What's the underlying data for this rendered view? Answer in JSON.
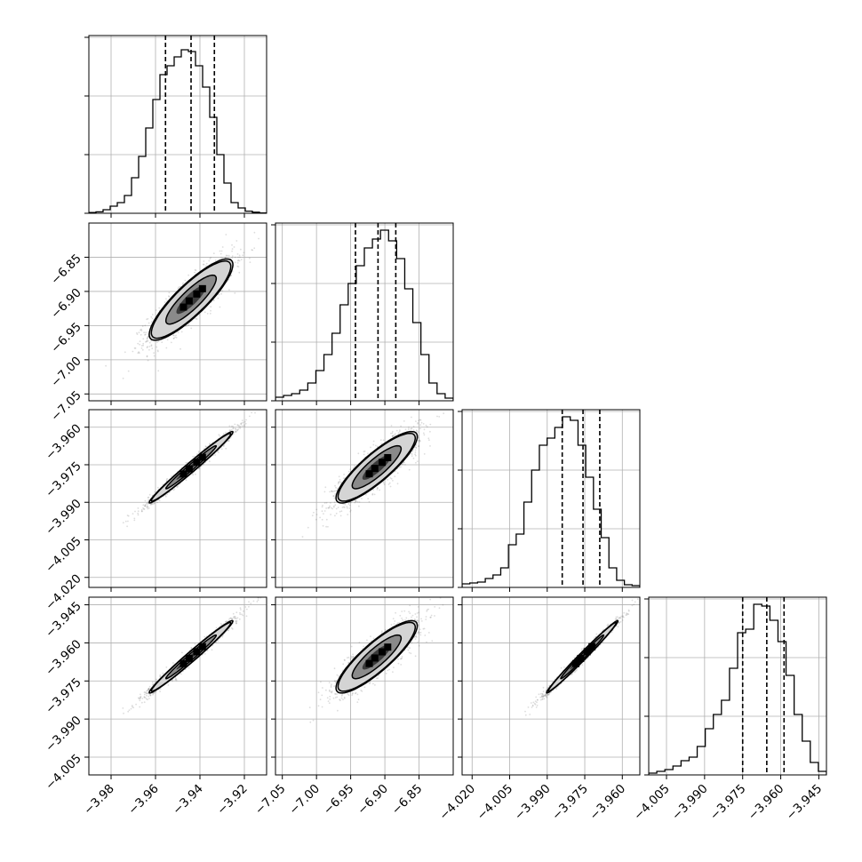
{
  "chart_data": {
    "type": "corner",
    "colors": {
      "axis": "#000000",
      "grid": "#b0b0b0",
      "points": "#666666"
    },
    "grid": true,
    "parameters": [
      {
        "xlim": [
          -3.99,
          -3.91
        ],
        "ylim": [
          -7.06,
          -6.8
        ],
        "ticks": [
          -3.98,
          -3.96,
          -3.94,
          -3.92
        ],
        "tick_labels": [
          "−3.98",
          "−3.96",
          "−3.94",
          "−3.92"
        ],
        "quantiles": [
          -3.9555,
          -3.944,
          -3.9335
        ],
        "center": -3.944,
        "sigma": 0.0095,
        "hist_ylim": [
          0,
          1.0
        ],
        "hist_ticks": [
          0.0,
          0.33,
          0.66,
          0.99
        ],
        "hist": [
          0.004,
          0.008,
          0.02,
          0.04,
          0.06,
          0.1,
          0.2,
          0.32,
          0.48,
          0.64,
          0.78,
          0.83,
          0.88,
          0.92,
          0.91,
          0.83,
          0.71,
          0.54,
          0.33,
          0.17,
          0.06,
          0.03,
          0.012,
          0.006,
          0.002
        ]
      },
      {
        "xlim": [
          -7.06,
          -6.8
        ],
        "ylim": [
          -7.06,
          -6.8
        ],
        "ticks": [
          -7.05,
          -7.0,
          -6.95,
          -6.9,
          -6.85
        ],
        "tick_labels": [
          "−7.05",
          "−7.00",
          "−6.95",
          "−6.90",
          "−6.85"
        ],
        "quantiles": [
          -6.943,
          -6.91,
          -6.884
        ],
        "center": -6.912,
        "sigma": 0.03,
        "hist_ylim": [
          0,
          1.0
        ],
        "hist_ticks": [
          0.0,
          0.33,
          0.66,
          0.99
        ],
        "hist": [
          0.02,
          0.03,
          0.04,
          0.06,
          0.1,
          0.17,
          0.26,
          0.38,
          0.54,
          0.66,
          0.76,
          0.86,
          0.91,
          0.96,
          0.9,
          0.8,
          0.63,
          0.44,
          0.26,
          0.1,
          0.04,
          0.015
        ]
      },
      {
        "xlim": [
          -4.024,
          -3.953
        ],
        "ylim": [
          -4.024,
          -3.953
        ],
        "ticks": [
          -4.02,
          -4.005,
          -3.99,
          -3.975,
          -3.96
        ],
        "tick_labels": [
          "−4.020",
          "−4.005",
          "−3.990",
          "−3.975",
          "−3.960"
        ],
        "quantiles": [
          -3.984,
          -3.9757,
          -3.969
        ],
        "center": -3.976,
        "sigma": 0.0072,
        "hist_ylim": [
          0,
          1.0
        ],
        "hist_ticks": [
          0.0,
          0.33,
          0.66,
          0.99
        ],
        "hist": [
          0.02,
          0.025,
          0.03,
          0.05,
          0.07,
          0.11,
          0.24,
          0.3,
          0.48,
          0.66,
          0.8,
          0.84,
          0.9,
          0.96,
          0.94,
          0.8,
          0.62,
          0.44,
          0.28,
          0.11,
          0.04,
          0.015,
          0.01
        ]
      },
      {
        "xlim": [
          -4.012,
          -3.942
        ],
        "ylim": [
          -4.012,
          -3.942
        ],
        "ticks": [
          -4.005,
          -3.99,
          -3.975,
          -3.96,
          -3.945
        ],
        "tick_labels": [
          "−4.005",
          "−3.990",
          "−3.975",
          "−3.960",
          "−3.945"
        ],
        "quantiles": [
          -3.975,
          -3.9655,
          -3.9587
        ],
        "center": -3.9655,
        "sigma": 0.0072,
        "hist_ylim": [
          0,
          1.0
        ],
        "hist_ticks": [
          0.0,
          0.33,
          0.66,
          0.99
        ],
        "hist": [
          0.01,
          0.02,
          0.03,
          0.05,
          0.08,
          0.1,
          0.16,
          0.26,
          0.34,
          0.42,
          0.6,
          0.8,
          0.82,
          0.96,
          0.95,
          0.87,
          0.75,
          0.56,
          0.34,
          0.19,
          0.07,
          0.02
        ]
      }
    ],
    "pairs": [
      {
        "row": 1,
        "col": 0,
        "corr": 0.86
      },
      {
        "row": 2,
        "col": 0,
        "corr": 0.985
      },
      {
        "row": 2,
        "col": 1,
        "corr": 0.86
      },
      {
        "row": 3,
        "col": 0,
        "corr": 0.985
      },
      {
        "row": 3,
        "col": 1,
        "corr": 0.86
      },
      {
        "row": 3,
        "col": 2,
        "corr": 0.99
      }
    ],
    "contour_levels": [
      0.39,
      0.86,
      0.99
    ],
    "samples_per_panel": 1600
  }
}
